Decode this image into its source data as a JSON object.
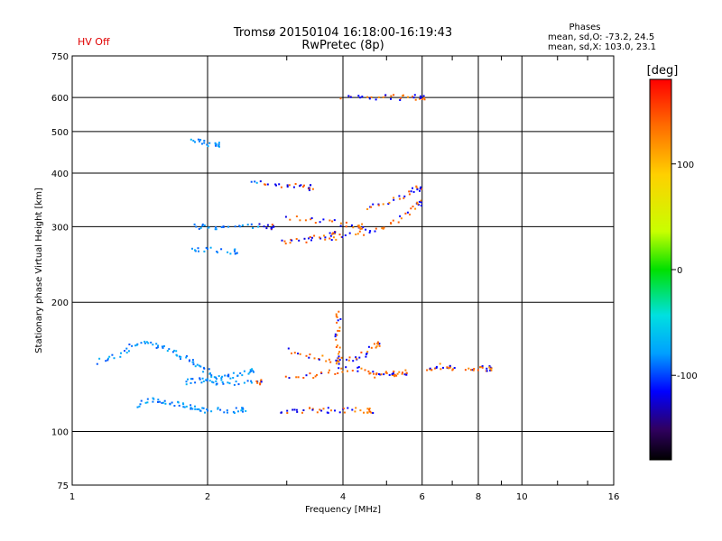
{
  "status": {
    "hv_label": "HV Off"
  },
  "chart_data": {
    "type": "scatter",
    "title": "Tromsø 20150104 16:18:00-16:19:43",
    "subtitle": "RwPretec (8p)",
    "xlabel": "Frequency [MHz]",
    "ylabel": "Stationary phase Virtual Height [km]",
    "x_scale": "log",
    "y_scale": "log",
    "xlim": [
      1,
      16
    ],
    "ylim": [
      75,
      750
    ],
    "x_ticks": [
      1,
      2,
      4,
      6,
      8,
      10,
      16
    ],
    "y_ticks": [
      75,
      100,
      200,
      300,
      400,
      500,
      600,
      750
    ],
    "grid": true,
    "colorbar": {
      "label": "[deg]",
      "range": [
        -180,
        180
      ],
      "ticks": [
        100,
        0,
        -100
      ]
    },
    "phase_stats": {
      "title": "Phases",
      "line_o": "mean, sd,O: -73.2, 24.5",
      "line_x": "mean, sd,X: 103.0, 23.1"
    },
    "traces": [
      {
        "name": "",
        "points": [
          [
            1.15,
            145
          ],
          [
            1.25,
            150
          ],
          [
            1.35,
            158
          ],
          [
            1.45,
            160
          ],
          [
            1.55,
            158
          ],
          [
            1.65,
            155
          ],
          [
            1.75,
            150
          ],
          [
            1.85,
            145
          ],
          [
            1.95,
            140
          ],
          [
            2.05,
            135
          ],
          [
            2.15,
            133
          ],
          [
            2.3,
            135
          ],
          [
            2.5,
            138
          ]
        ]
      },
      {
        "name": "",
        "points": [
          [
            1.4,
            115
          ],
          [
            1.5,
            118
          ],
          [
            1.6,
            118
          ],
          [
            1.7,
            116
          ],
          [
            1.8,
            114
          ],
          [
            1.9,
            113
          ],
          [
            2.0,
            112
          ],
          [
            2.2,
            112
          ],
          [
            2.4,
            112
          ]
        ]
      },
      {
        "name": "",
        "points": [
          [
            1.8,
            130
          ],
          [
            1.9,
            132
          ],
          [
            2.0,
            131
          ],
          [
            2.1,
            130
          ],
          [
            2.3,
            130
          ],
          [
            2.6,
            130
          ]
        ]
      },
      {
        "name": "",
        "points": [
          [
            1.85,
            300
          ],
          [
            2.0,
            300
          ],
          [
            2.2,
            300
          ],
          [
            2.5,
            300
          ],
          [
            2.8,
            300
          ]
        ]
      },
      {
        "name": "",
        "points": [
          [
            1.85,
            265
          ],
          [
            2.0,
            265
          ],
          [
            2.3,
            262
          ]
        ]
      },
      {
        "name": "",
        "points": [
          [
            1.85,
            480
          ],
          [
            1.95,
            470
          ],
          [
            2.1,
            465
          ]
        ]
      },
      {
        "name": "",
        "points": [
          [
            2.5,
            380
          ],
          [
            2.8,
            375
          ],
          [
            3.1,
            372
          ],
          [
            3.4,
            370
          ]
        ]
      },
      {
        "name": "",
        "points": [
          [
            2.9,
            112
          ],
          [
            3.2,
            112
          ],
          [
            3.5,
            112
          ],
          [
            3.8,
            112
          ],
          [
            4.2,
            112
          ],
          [
            4.6,
            112
          ]
        ]
      },
      {
        "name": "",
        "points": [
          [
            3.0,
            133
          ],
          [
            3.4,
            135
          ],
          [
            3.8,
            138
          ],
          [
            4.2,
            140
          ],
          [
            4.6,
            138
          ],
          [
            5.2,
            136
          ]
        ]
      },
      {
        "name": "",
        "points": [
          [
            3.0,
            155
          ],
          [
            3.4,
            150
          ],
          [
            3.8,
            147
          ],
          [
            4.2,
            148
          ],
          [
            4.5,
            152
          ],
          [
            4.8,
            160
          ]
        ]
      },
      {
        "name": "",
        "points": [
          [
            2.9,
            275
          ],
          [
            3.2,
            278
          ],
          [
            3.5,
            282
          ],
          [
            3.8,
            288
          ]
        ]
      },
      {
        "name": "",
        "points": [
          [
            3.0,
            315
          ],
          [
            3.5,
            310
          ],
          [
            4.0,
            305
          ],
          [
            4.4,
            300
          ]
        ]
      },
      {
        "name": "",
        "points": [
          [
            3.7,
            282
          ],
          [
            4.0,
            285
          ],
          [
            4.5,
            292
          ],
          [
            5.0,
            302
          ],
          [
            5.5,
            318
          ],
          [
            5.9,
            340
          ]
        ]
      },
      {
        "name": "",
        "points": [
          [
            4.5,
            330
          ],
          [
            5.0,
            342
          ],
          [
            5.5,
            355
          ],
          [
            5.9,
            368
          ]
        ]
      },
      {
        "name": "",
        "points": [
          [
            4.6,
            135
          ],
          [
            5.0,
            136
          ],
          [
            5.5,
            137
          ]
        ]
      },
      {
        "name": "",
        "points": [
          [
            6.2,
            140
          ],
          [
            6.5,
            142
          ],
          [
            7.0,
            141
          ]
        ]
      },
      {
        "name": "",
        "points": [
          [
            7.5,
            140
          ],
          [
            8.0,
            141
          ],
          [
            8.5,
            140
          ]
        ]
      },
      {
        "name": "",
        "points": [
          [
            4.0,
            600
          ],
          [
            4.5,
            600
          ],
          [
            5.0,
            600
          ],
          [
            5.5,
            600
          ],
          [
            6.0,
            600
          ]
        ]
      },
      {
        "name": "",
        "points": [
          [
            3.9,
            190
          ],
          [
            3.9,
            175
          ],
          [
            3.9,
            160
          ],
          [
            3.9,
            145
          ]
        ]
      }
    ]
  }
}
